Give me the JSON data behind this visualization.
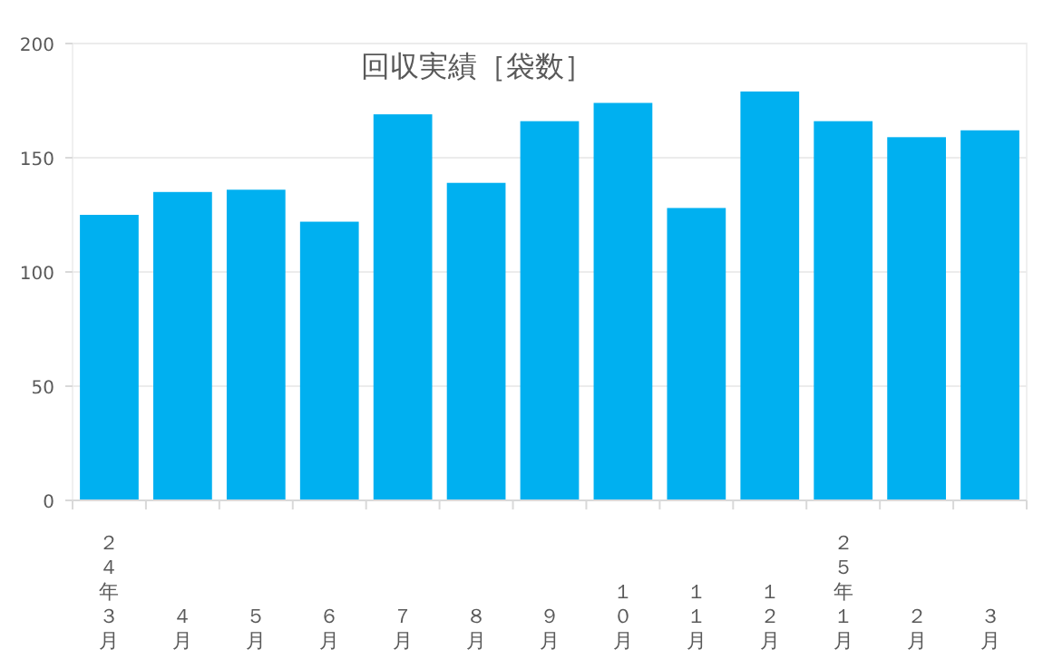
{
  "chart_data": {
    "type": "bar",
    "title": "回収実績［袋数］",
    "categories": [
      "２４年３月",
      "４月",
      "５月",
      "６月",
      "７月",
      "８月",
      "９月",
      "１０月",
      "１１月",
      "１２月",
      "２５年１月",
      "２月",
      "３月"
    ],
    "values": [
      125,
      135,
      136,
      122,
      169,
      139,
      166,
      174,
      128,
      179,
      166,
      159,
      162
    ],
    "color": "#00b0f0",
    "ylim": [
      0,
      200
    ],
    "yticks": [
      0,
      50,
      100,
      150,
      200
    ],
    "grid": "y"
  }
}
